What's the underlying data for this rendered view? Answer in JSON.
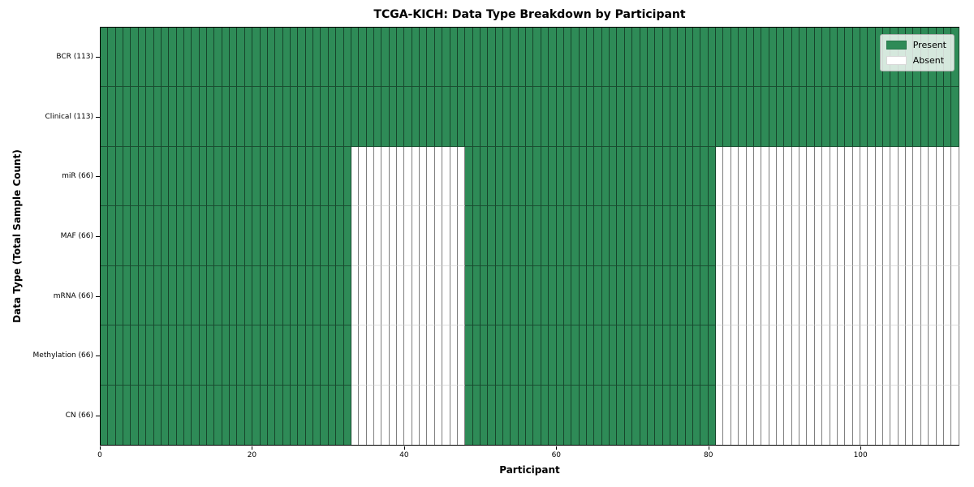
{
  "chart_data": {
    "type": "heatmap",
    "title": "TCGA-KICH: Data Type Breakdown by Participant",
    "xlabel": "Participant",
    "ylabel": "Data Type (Total Sample Count)",
    "n_participants": 113,
    "x_ticks": [
      0,
      20,
      40,
      60,
      80,
      100
    ],
    "x_range": [
      0,
      113
    ],
    "grid": true,
    "legend_position": "upper right",
    "rows": [
      {
        "label": "BCR (113)",
        "data_type": "BCR",
        "total": 113,
        "present_ranges": [
          [
            0,
            113
          ]
        ]
      },
      {
        "label": "Clinical (113)",
        "data_type": "Clinical",
        "total": 113,
        "present_ranges": [
          [
            0,
            113
          ]
        ]
      },
      {
        "label": "miR (66)",
        "data_type": "miR",
        "total": 66,
        "present_ranges": [
          [
            0,
            33
          ],
          [
            48,
            81
          ]
        ]
      },
      {
        "label": "MAF (66)",
        "data_type": "MAF",
        "total": 66,
        "present_ranges": [
          [
            0,
            33
          ],
          [
            48,
            81
          ]
        ]
      },
      {
        "label": "mRNA (66)",
        "data_type": "mRNA",
        "total": 66,
        "present_ranges": [
          [
            0,
            33
          ],
          [
            48,
            81
          ]
        ]
      },
      {
        "label": "Methylation (66)",
        "data_type": "Methylation",
        "total": 66,
        "present_ranges": [
          [
            0,
            33
          ],
          [
            48,
            81
          ]
        ]
      },
      {
        "label": "CN (66)",
        "data_type": "CN",
        "total": 66,
        "present_ranges": [
          [
            0,
            33
          ],
          [
            48,
            81
          ]
        ]
      }
    ],
    "legend": [
      {
        "label": "Present",
        "color": "#2e8b57"
      },
      {
        "label": "Absent",
        "color": "#ffffff"
      }
    ],
    "colors": {
      "present": "#2e8b57",
      "absent": "#ffffff",
      "spine": "#000000"
    }
  }
}
